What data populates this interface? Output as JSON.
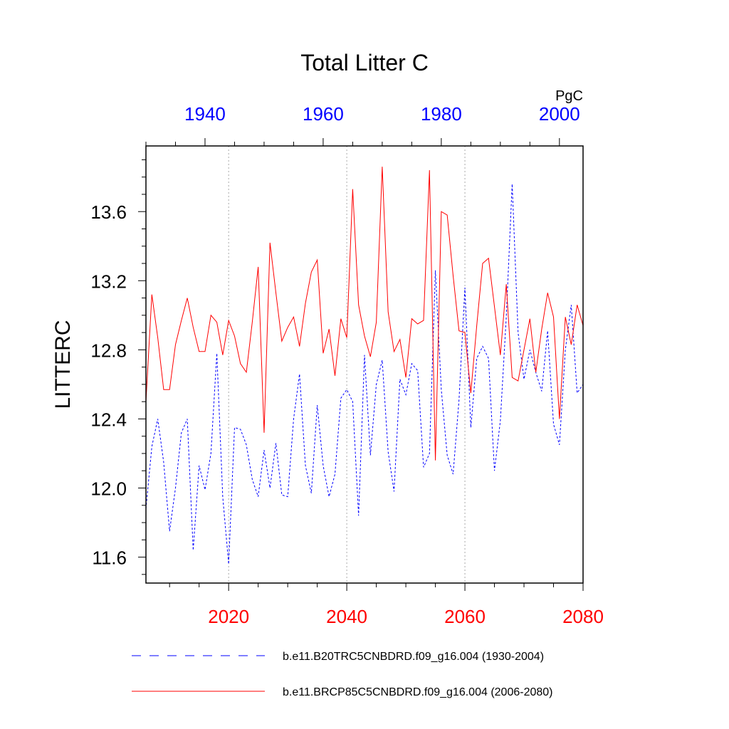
{
  "chart_data": {
    "type": "line",
    "title": "Total Litter C",
    "units": "PgC",
    "ylabel": "LITTERC",
    "ylim": [
      11.45,
      13.98
    ],
    "yticks": [
      11.6,
      12.0,
      12.4,
      12.8,
      13.2,
      13.6
    ],
    "ytick_labels": [
      "11.6",
      "12.0",
      "12.4",
      "12.8",
      "13.2",
      "13.6"
    ],
    "bottom_axis": {
      "range": [
        2006,
        2080
      ],
      "ticks": [
        2020,
        2040,
        2060,
        2080
      ],
      "tick_labels": [
        "2020",
        "2040",
        "2060",
        "2080"
      ],
      "label_color": "#ff0000"
    },
    "top_axis": {
      "range": [
        1930,
        2004
      ],
      "ticks": [
        1940,
        1960,
        1980,
        2000
      ],
      "tick_labels": [
        "1940",
        "1960",
        "1980",
        "2000"
      ],
      "label_color": "#0000ff"
    },
    "grid": "vertical dotted at bottom-axis ticks",
    "series": [
      {
        "name": "b.e11.B20TRC5CNBDRD.f09_g16.004 (1930-2004)",
        "axis": "top",
        "color": "#0000ff",
        "dash": "dashed",
        "x_start": 1930,
        "values": [
          11.88,
          12.24,
          12.4,
          12.15,
          11.75,
          12.0,
          12.32,
          12.4,
          11.64,
          12.13,
          11.99,
          12.2,
          12.78,
          11.95,
          11.56,
          12.35,
          12.34,
          12.25,
          12.05,
          11.95,
          12.22,
          12.0,
          12.26,
          11.96,
          11.95,
          12.4,
          12.66,
          12.13,
          11.97,
          12.48,
          12.13,
          11.95,
          12.08,
          12.52,
          12.57,
          12.5,
          11.84,
          12.77,
          12.19,
          12.6,
          12.74,
          12.21,
          11.98,
          12.63,
          12.54,
          12.72,
          12.68,
          12.12,
          12.2,
          13.26,
          12.57,
          12.19,
          12.08,
          12.51,
          13.16,
          12.35,
          12.75,
          12.82,
          12.75,
          12.1,
          12.39,
          12.99,
          13.76,
          12.9,
          12.63,
          12.8,
          12.67,
          12.56,
          12.91,
          12.37,
          12.25,
          12.8,
          13.06,
          12.55,
          12.6
        ]
      },
      {
        "name": "b.e11.BRCP85C5CNBDRD.f09_g16.004 (2006-2080)",
        "axis": "bottom",
        "color": "#ff0000",
        "dash": "solid",
        "x_start": 2006,
        "values": [
          12.5,
          13.12,
          12.87,
          12.57,
          12.57,
          12.83,
          12.97,
          13.1,
          12.93,
          12.79,
          12.79,
          13.0,
          12.96,
          12.77,
          12.97,
          12.88,
          12.72,
          12.67,
          12.96,
          13.28,
          12.32,
          13.42,
          13.13,
          12.85,
          12.93,
          12.99,
          12.82,
          13.07,
          13.25,
          13.32,
          12.78,
          12.92,
          12.65,
          12.98,
          12.87,
          13.73,
          13.06,
          12.88,
          12.76,
          12.96,
          13.86,
          13.02,
          12.79,
          12.86,
          12.64,
          12.98,
          12.95,
          12.97,
          13.84,
          12.16,
          13.6,
          13.58,
          13.23,
          12.91,
          12.9,
          12.55,
          12.94,
          13.3,
          13.33,
          13.05,
          12.77,
          13.18,
          12.64,
          12.62,
          12.8,
          12.98,
          12.67,
          12.92,
          13.13,
          12.99,
          12.4,
          12.99,
          12.83,
          13.06,
          12.94
        ]
      }
    ]
  }
}
